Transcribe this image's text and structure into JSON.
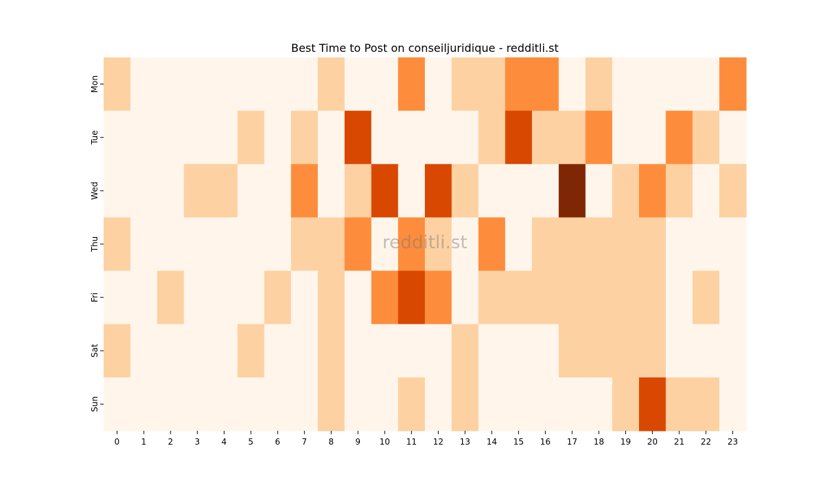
{
  "chart_data": {
    "type": "heatmap",
    "title": "Best Time to Post on conseiljuridique - redditli.st",
    "watermark": "redditli.st",
    "x_categories": [
      "0",
      "1",
      "2",
      "3",
      "4",
      "5",
      "6",
      "7",
      "8",
      "9",
      "10",
      "11",
      "12",
      "13",
      "14",
      "15",
      "16",
      "17",
      "18",
      "19",
      "20",
      "21",
      "22",
      "23"
    ],
    "y_categories": [
      "Mon",
      "Tue",
      "Wed",
      "Thu",
      "Fri",
      "Sat",
      "Sun"
    ],
    "values": [
      [
        1,
        0,
        0,
        0,
        0,
        0,
        0,
        0,
        1,
        0,
        0,
        2,
        0,
        1,
        1,
        2,
        2,
        0,
        1,
        0,
        0,
        0,
        0,
        2
      ],
      [
        0,
        0,
        0,
        0,
        0,
        1,
        0,
        1,
        0,
        3,
        0,
        0,
        0,
        0,
        1,
        3,
        1,
        1,
        2,
        0,
        0,
        2,
        1,
        0
      ],
      [
        0,
        0,
        0,
        1,
        1,
        0,
        0,
        2,
        0,
        1,
        3,
        0,
        3,
        1,
        0,
        0,
        0,
        4,
        0,
        1,
        2,
        1,
        0,
        1
      ],
      [
        1,
        0,
        0,
        0,
        0,
        0,
        0,
        1,
        1,
        2,
        0,
        2,
        1,
        0,
        2,
        0,
        1,
        1,
        1,
        1,
        1,
        0,
        0,
        0
      ],
      [
        0,
        0,
        1,
        0,
        0,
        0,
        1,
        0,
        1,
        0,
        2,
        3,
        2,
        0,
        1,
        1,
        1,
        1,
        1,
        1,
        1,
        0,
        1,
        0
      ],
      [
        1,
        0,
        0,
        0,
        0,
        1,
        0,
        0,
        1,
        0,
        0,
        0,
        0,
        1,
        0,
        0,
        0,
        1,
        1,
        1,
        1,
        0,
        0,
        0
      ],
      [
        0,
        0,
        0,
        0,
        0,
        0,
        0,
        0,
        1,
        0,
        0,
        1,
        0,
        1,
        0,
        0,
        0,
        0,
        0,
        1,
        3,
        1,
        1,
        0
      ]
    ],
    "value_range": [
      0,
      4
    ],
    "colormap": "Oranges",
    "color_scale": [
      "#fff5eb",
      "#fdd1a2",
      "#fd8d3c",
      "#d94801",
      "#7f2704"
    ],
    "grid": false,
    "legend": "none"
  }
}
